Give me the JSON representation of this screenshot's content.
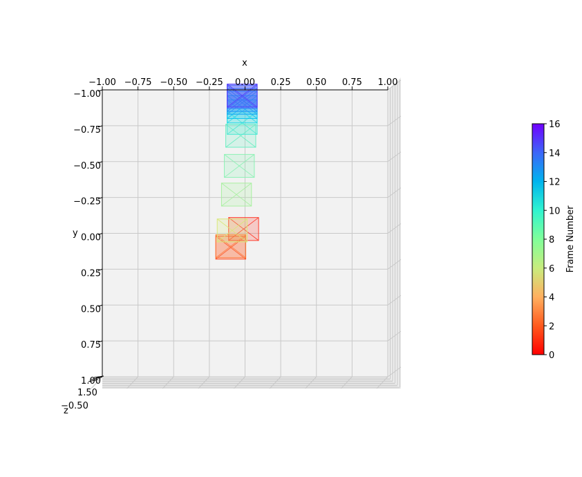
{
  "chart_data": {
    "type": "3d-bbox-trajectory",
    "xlabel": "x",
    "ylabel": "y",
    "zlabel": "z",
    "xlim": [
      -1.0,
      1.0
    ],
    "ylim": [
      -1.0,
      1.0
    ],
    "x_ticks": [
      "−1.00",
      "−0.75",
      "−0.50",
      "−0.25",
      "0.00",
      "0.25",
      "0.50",
      "0.75",
      "1.00"
    ],
    "y_ticks": [
      "−1.00",
      "−0.75",
      "−0.50",
      "−0.25",
      "0.00",
      "0.25",
      "0.50",
      "0.75",
      "1.00"
    ],
    "z_ticks_partial": [
      "1.50",
      "−0.50"
    ],
    "colorbar": {
      "label": "Frame Number",
      "min": 0,
      "max": 16,
      "ticks": [
        "0",
        "2",
        "4",
        "6",
        "8",
        "10",
        "12",
        "14",
        "16"
      ]
    },
    "boxes": [
      {
        "frame": 0,
        "cx": -0.01,
        "cy": -0.03,
        "w": 0.21,
        "h": 0.16,
        "color": "#ff3a2a"
      },
      {
        "frame": 1,
        "cx": -0.1,
        "cy": 0.1,
        "w": 0.21,
        "h": 0.16,
        "color": "#ff4a20"
      },
      {
        "frame": 2,
        "cx": -0.1,
        "cy": 0.09,
        "w": 0.21,
        "h": 0.16,
        "color": "#ff7a3a"
      },
      {
        "frame": 4,
        "cx": -0.09,
        "cy": -0.02,
        "w": 0.21,
        "h": 0.16,
        "color": "#d8e87a"
      },
      {
        "frame": 6,
        "cx": -0.06,
        "cy": -0.27,
        "w": 0.21,
        "h": 0.16,
        "color": "#a8f0a0"
      },
      {
        "frame": 7,
        "cx": -0.04,
        "cy": -0.47,
        "w": 0.21,
        "h": 0.16,
        "color": "#8cf2b4"
      },
      {
        "frame": 8,
        "cx": -0.03,
        "cy": -0.68,
        "w": 0.21,
        "h": 0.16,
        "color": "#6ceec2"
      },
      {
        "frame": 9,
        "cx": -0.02,
        "cy": -0.77,
        "w": 0.21,
        "h": 0.16,
        "color": "#4ae8d4"
      },
      {
        "frame": 10,
        "cx": -0.02,
        "cy": -0.85,
        "w": 0.21,
        "h": 0.16,
        "color": "#24d8e8"
      },
      {
        "frame": 11,
        "cx": -0.02,
        "cy": -0.88,
        "w": 0.21,
        "h": 0.16,
        "color": "#10c4f0"
      },
      {
        "frame": 12,
        "cx": -0.02,
        "cy": -0.91,
        "w": 0.21,
        "h": 0.16,
        "color": "#1aa8f4"
      },
      {
        "frame": 13,
        "cx": -0.02,
        "cy": -0.93,
        "w": 0.21,
        "h": 0.16,
        "color": "#2a90f6"
      },
      {
        "frame": 14,
        "cx": -0.02,
        "cy": -0.95,
        "w": 0.21,
        "h": 0.16,
        "color": "#3a74f8"
      },
      {
        "frame": 15,
        "cx": -0.02,
        "cy": -0.96,
        "w": 0.21,
        "h": 0.16,
        "color": "#4a5cfa"
      },
      {
        "frame": 16,
        "cx": -0.02,
        "cy": -0.96,
        "w": 0.21,
        "h": 0.16,
        "color": "#5a40fc"
      }
    ]
  }
}
